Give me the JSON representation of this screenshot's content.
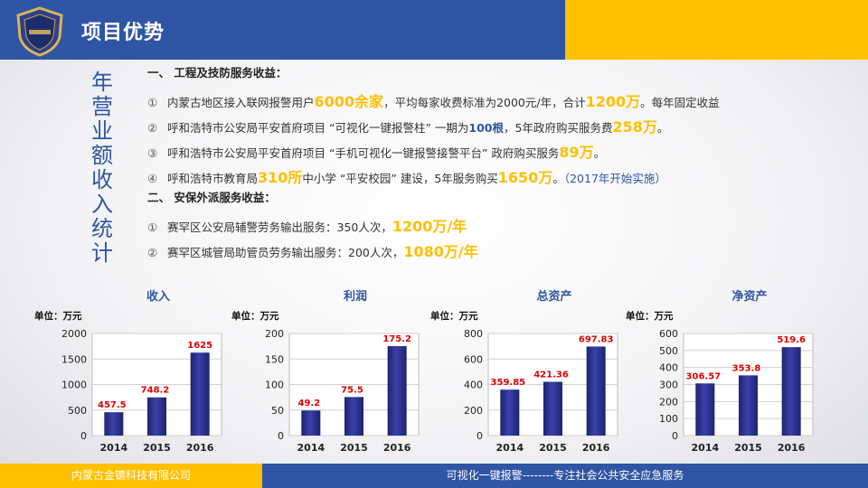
{
  "header": {
    "title": "项目优势"
  },
  "side_title": [
    "年",
    "营",
    "业",
    "额",
    "收",
    "入",
    "统",
    "计"
  ],
  "content": {
    "section1": "一、 工程及技防服务收益：",
    "items1": [
      {
        "num": "①",
        "segments": [
          {
            "t": "内蒙古地区接入联网报警用户",
            "s": "n"
          },
          {
            "t": "6000余家",
            "s": "h"
          },
          {
            "t": "，平均每家收费标准为2000元/年，合计",
            "s": "n"
          },
          {
            "t": "1200万",
            "s": "h"
          },
          {
            "t": "。每年固定收益",
            "s": "n"
          }
        ]
      },
      {
        "num": "②",
        "segments": [
          {
            "t": "呼和浩特市公安局平安首府项目 “可视化一键报警柱” 一期为",
            "s": "n"
          },
          {
            "t": "100根",
            "s": "b"
          },
          {
            "t": "，5年政府购买服务费",
            "s": "n"
          },
          {
            "t": "258万",
            "s": "h"
          },
          {
            "t": "。",
            "s": "n"
          }
        ]
      },
      {
        "num": "③",
        "segments": [
          {
            "t": "呼和浩特市公安局平安首府项目 “手机可视化一键报警接警平台” 政府购买服务",
            "s": "n"
          },
          {
            "t": "89万",
            "s": "h"
          },
          {
            "t": "。",
            "s": "n"
          }
        ]
      },
      {
        "num": "④",
        "segments": [
          {
            "t": "呼和浩特市教育局",
            "s": "n"
          },
          {
            "t": "310所",
            "s": "h"
          },
          {
            "t": "中小学 “平安校园” 建设，5年服务购买",
            "s": "n"
          },
          {
            "t": "1650万",
            "s": "h"
          },
          {
            "t": "。",
            "s": "n"
          },
          {
            "t": "（2017年开始实施）",
            "s": "note"
          }
        ]
      }
    ],
    "section2": "二、 安保外派服务收益：",
    "items2": [
      {
        "num": "①",
        "segments": [
          {
            "t": "赛罕区公安局辅警劳务输出服务：350人次，",
            "s": "n"
          },
          {
            "t": "1200万/年",
            "s": "h"
          }
        ]
      },
      {
        "num": "②",
        "segments": [
          {
            "t": "赛罕区城管局助管员劳务输出服务：200人次，",
            "s": "n"
          },
          {
            "t": "1080万/年",
            "s": "h"
          }
        ]
      }
    ]
  },
  "chart_data": [
    {
      "type": "bar",
      "title": "收入",
      "unit": "单位：万元",
      "categories": [
        "2014",
        "2015",
        "2016"
      ],
      "values": [
        457.5,
        748.2,
        1625
      ],
      "labels": [
        "457.5",
        "748.2",
        "1625"
      ],
      "ylim": [
        0,
        2000
      ],
      "yticks": [
        0,
        500,
        1000,
        1500,
        2000
      ]
    },
    {
      "type": "bar",
      "title": "利润",
      "unit": "单位：万元",
      "categories": [
        "2014",
        "2015",
        "2016"
      ],
      "values": [
        49.2,
        75.5,
        175.2
      ],
      "labels": [
        "49.2",
        "75.5",
        "175.2"
      ],
      "ylim": [
        0,
        200
      ],
      "yticks": [
        0,
        50,
        100,
        150,
        200
      ]
    },
    {
      "type": "bar",
      "title": "总资产",
      "unit": "单位：万元",
      "categories": [
        "2014",
        "2015",
        "2016"
      ],
      "values": [
        359.85,
        421.36,
        697.83
      ],
      "labels": [
        "359.85",
        "421.36",
        "697.83"
      ],
      "ylim": [
        0,
        800
      ],
      "yticks": [
        0,
        200,
        400,
        600,
        800
      ]
    },
    {
      "type": "bar",
      "title": "净资产",
      "unit": "单位：万元",
      "categories": [
        "2014",
        "2015",
        "2016"
      ],
      "values": [
        306.57,
        353.8,
        519.6
      ],
      "labels": [
        "306.57",
        "353.8",
        "519.6"
      ],
      "ylim": [
        0,
        600
      ],
      "yticks": [
        0,
        100,
        200,
        300,
        400,
        500,
        600
      ]
    }
  ],
  "footer": {
    "company": "内蒙古金镳科技有限公司",
    "slogan": "可视化一键报警--------专注社会公共安全应急服务"
  },
  "colors": {
    "blue": "#2f55a4",
    "gold": "#ffc000",
    "bar": "#2b2f8f",
    "label": "#e00000"
  }
}
